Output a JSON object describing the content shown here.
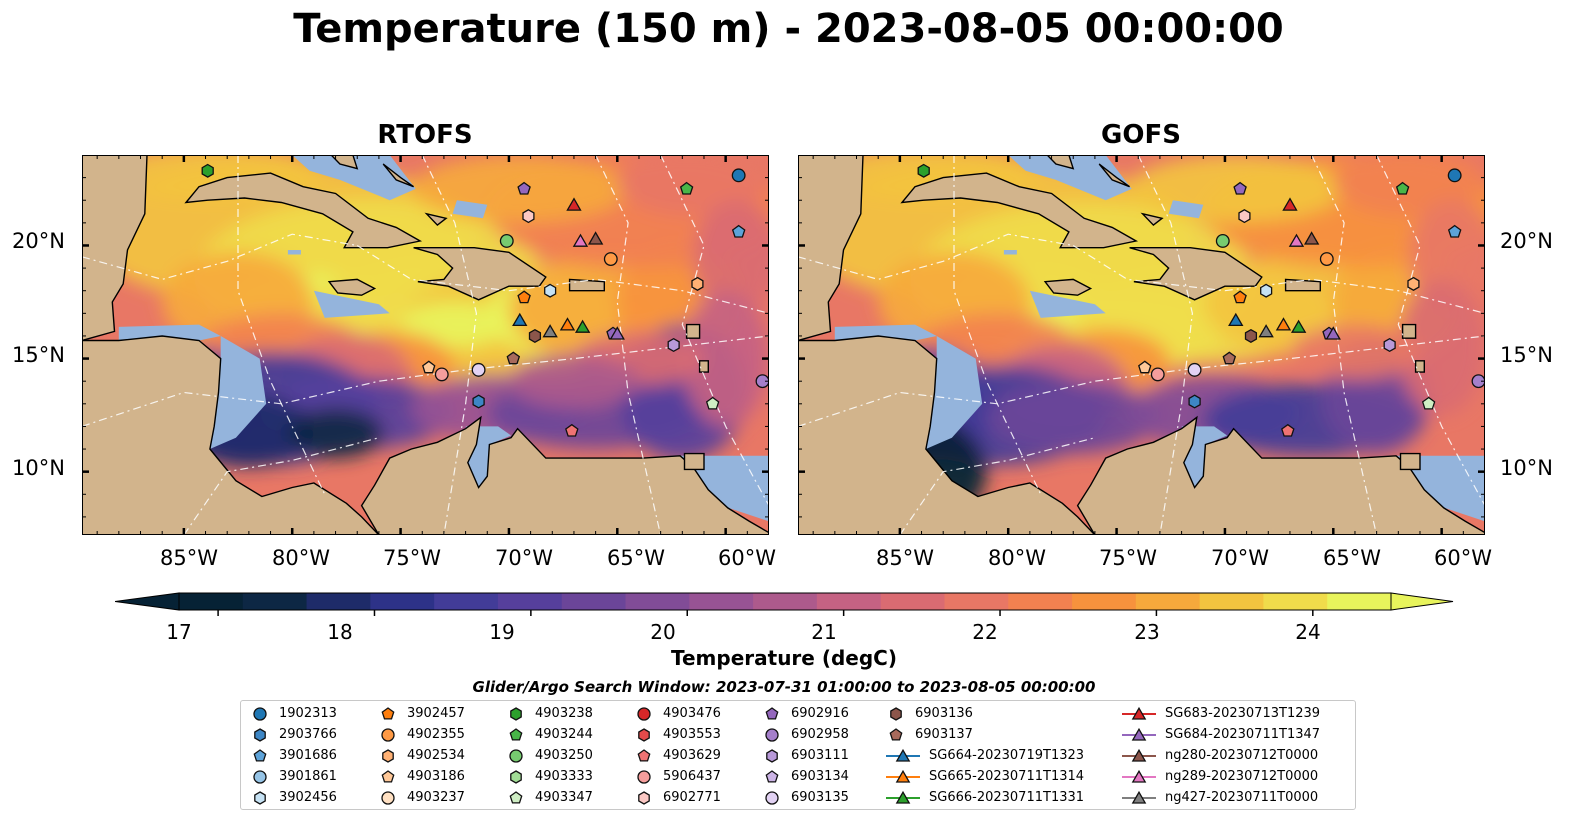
{
  "title": "Temperature (150 m) - 2023-08-05 00:00:00",
  "panels": [
    {
      "title": "RTOFS",
      "model": "rtofs"
    },
    {
      "title": "GOFS",
      "model": "gofs"
    }
  ],
  "axes": {
    "lon_ticks": [
      "85°W",
      "80°W",
      "75°W",
      "70°W",
      "65°W",
      "60°W"
    ],
    "lat_ticks": [
      "20°N",
      "15°N",
      "10°N"
    ]
  },
  "colorbar": {
    "label": "Temperature (degC)",
    "ticks": [
      "17",
      "18",
      "19",
      "20",
      "21",
      "22",
      "23",
      "24"
    ],
    "range": [
      16.75,
      24.5
    ],
    "step": 0.5,
    "extend": "both",
    "colormap": [
      "#062235",
      "#0d2744",
      "#1e2b69",
      "#2d3288",
      "#423c98",
      "#563f9c",
      "#6b4599",
      "#814c97",
      "#985394",
      "#ad5a8c",
      "#c56283",
      "#da6b72",
      "#e87765",
      "#f28150",
      "#f7923d",
      "#f6a93c",
      "#f3c43f",
      "#f0dc4b",
      "#e8f45c"
    ]
  },
  "land_color": "#d2b48c",
  "shelf_color": "#94b4dc",
  "legend": {
    "title": "Glider/Argo Search Window: 2023-07-31 01:00:00 to 2023-08-05 00:00:00",
    "columns": [
      [
        {
          "label": "1902313",
          "marker": "circle",
          "color": "#1f77b4"
        },
        {
          "label": "2903766",
          "marker": "hexagon",
          "color": "#3d86c5"
        },
        {
          "label": "3901686",
          "marker": "pentagon",
          "color": "#5da3d9"
        },
        {
          "label": "3901861",
          "marker": "circle",
          "color": "#96c4e6"
        },
        {
          "label": "3902456",
          "marker": "hexagon",
          "color": "#c6e2f4"
        }
      ],
      [
        {
          "label": "3902457",
          "marker": "pentagon",
          "color": "#ff7f0e"
        },
        {
          "label": "4902355",
          "marker": "circle",
          "color": "#ff9a45"
        },
        {
          "label": "4902534",
          "marker": "hexagon",
          "color": "#ffb174"
        },
        {
          "label": "4903186",
          "marker": "pentagon",
          "color": "#ffc898"
        },
        {
          "label": "4903237",
          "marker": "circle",
          "color": "#ffe0c2"
        }
      ],
      [
        {
          "label": "4903238",
          "marker": "hexagon",
          "color": "#2ca02c"
        },
        {
          "label": "4903244",
          "marker": "pentagon",
          "color": "#48b648"
        },
        {
          "label": "4903250",
          "marker": "circle",
          "color": "#77cc70"
        },
        {
          "label": "4903333",
          "marker": "hexagon",
          "color": "#a2dd96"
        },
        {
          "label": "4903347",
          "marker": "pentagon",
          "color": "#cfeec4"
        }
      ],
      [
        {
          "label": "4903476",
          "marker": "circle",
          "color": "#d62728"
        },
        {
          "label": "4903553",
          "marker": "hexagon",
          "color": "#e34a4a"
        },
        {
          "label": "4903629",
          "marker": "pentagon",
          "color": "#ef7373"
        },
        {
          "label": "5906437",
          "marker": "circle",
          "color": "#f59e9c"
        },
        {
          "label": "6902771",
          "marker": "hexagon",
          "color": "#fbc8c4"
        }
      ],
      [
        {
          "label": "6902916",
          "marker": "pentagon",
          "color": "#9467bd"
        },
        {
          "label": "6902958",
          "marker": "circle",
          "color": "#a57fcb"
        },
        {
          "label": "6903111",
          "marker": "hexagon",
          "color": "#b899d9"
        },
        {
          "label": "6903134",
          "marker": "pentagon",
          "color": "#ccb4e6"
        },
        {
          "label": "6903135",
          "marker": "circle",
          "color": "#e2d2f3"
        }
      ],
      [
        {
          "label": "6903136",
          "marker": "hexagon",
          "color": "#8c564b"
        },
        {
          "label": "6903137",
          "marker": "pentagon",
          "color": "#a86a5c"
        },
        {
          "label": "SG664-20230719T1323",
          "marker": "triangle-line",
          "color": "#1f77b4"
        },
        {
          "label": "SG665-20230711T1314",
          "marker": "triangle-line",
          "color": "#ff7f0e"
        },
        {
          "label": "SG666-20230711T1331",
          "marker": "triangle-line",
          "color": "#2ca02c"
        }
      ],
      [
        {
          "label": "SG683-20230713T1239",
          "marker": "triangle-line",
          "color": "#d62728"
        },
        {
          "label": "SG684-20230711T1347",
          "marker": "triangle-line",
          "color": "#9467bd"
        },
        {
          "label": "ng280-20230712T0000",
          "marker": "triangle-line",
          "color": "#8c564b"
        },
        {
          "label": "ng289-20230712T0000",
          "marker": "triangle-line",
          "color": "#e377c2"
        },
        {
          "label": "ng427-20230711T0000",
          "marker": "triangle-line",
          "color": "#7f7f7f"
        }
      ]
    ]
  },
  "platforms": [
    {
      "lon": -59.4,
      "lat": 23.1,
      "marker": "circle",
      "color": "#1f77b4"
    },
    {
      "lon": -59.4,
      "lat": 20.6,
      "marker": "pentagon",
      "color": "#5da3d9"
    },
    {
      "lon": -68.1,
      "lat": 18.0,
      "marker": "hexagon",
      "color": "#c6e2f4"
    },
    {
      "lon": -69.3,
      "lat": 17.7,
      "marker": "pentagon",
      "color": "#ff7f0e"
    },
    {
      "lon": -65.3,
      "lat": 19.4,
      "marker": "circle",
      "color": "#ff9a45"
    },
    {
      "lon": -61.3,
      "lat": 18.3,
      "marker": "hexagon",
      "color": "#ffb174"
    },
    {
      "lon": -73.7,
      "lat": 14.6,
      "marker": "pentagon",
      "color": "#ffc898"
    },
    {
      "lon": -71.4,
      "lat": 13.1,
      "marker": "hexagon",
      "color": "#3d86c5"
    },
    {
      "lon": -71.4,
      "lat": 14.5,
      "marker": "circle",
      "color": "#e2d2f3"
    },
    {
      "lon": -83.9,
      "lat": 23.3,
      "marker": "hexagon",
      "color": "#2ca02c"
    },
    {
      "lon": -61.8,
      "lat": 22.5,
      "marker": "pentagon",
      "color": "#48b648"
    },
    {
      "lon": -70.1,
      "lat": 20.2,
      "marker": "circle",
      "color": "#77cc70"
    },
    {
      "lon": -60.6,
      "lat": 13.0,
      "marker": "pentagon",
      "color": "#cfeec4"
    },
    {
      "lon": -67.1,
      "lat": 11.8,
      "marker": "pentagon",
      "color": "#ef7373"
    },
    {
      "lon": -73.1,
      "lat": 14.3,
      "marker": "circle",
      "color": "#f59e9c"
    },
    {
      "lon": -69.1,
      "lat": 21.3,
      "marker": "hexagon",
      "color": "#fbc8c4"
    },
    {
      "lon": -69.3,
      "lat": 22.5,
      "marker": "pentagon",
      "color": "#9467bd"
    },
    {
      "lon": -58.3,
      "lat": 14.0,
      "marker": "circle",
      "color": "#a57fcb"
    },
    {
      "lon": -62.4,
      "lat": 15.6,
      "marker": "hexagon",
      "color": "#b899d9"
    },
    {
      "lon": -65.2,
      "lat": 16.1,
      "marker": "pentagon",
      "color": "#9467bd"
    },
    {
      "lon": -68.8,
      "lat": 16.0,
      "marker": "hexagon",
      "color": "#8c564b"
    },
    {
      "lon": -69.8,
      "lat": 15.0,
      "marker": "pentagon",
      "color": "#a86a5c"
    },
    {
      "lon": -69.5,
      "lat": 16.7,
      "marker": "triangle",
      "color": "#1f77b4"
    },
    {
      "lon": -67.3,
      "lat": 16.5,
      "marker": "triangle",
      "color": "#ff7f0e"
    },
    {
      "lon": -66.6,
      "lat": 16.4,
      "marker": "triangle",
      "color": "#2ca02c"
    },
    {
      "lon": -67.0,
      "lat": 21.8,
      "marker": "triangle",
      "color": "#d62728"
    },
    {
      "lon": -65.0,
      "lat": 16.1,
      "marker": "triangle",
      "color": "#9467bd"
    },
    {
      "lon": -66.0,
      "lat": 20.3,
      "marker": "triangle",
      "color": "#8c564b"
    },
    {
      "lon": -66.7,
      "lat": 20.2,
      "marker": "triangle",
      "color": "#e377c2"
    },
    {
      "lon": -68.1,
      "lat": 16.2,
      "marker": "triangle",
      "color": "#7f7f7f"
    }
  ]
}
